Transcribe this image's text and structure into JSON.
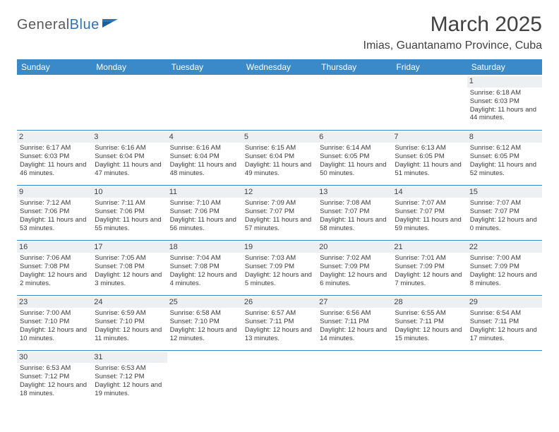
{
  "header": {
    "logo_part1": "General",
    "logo_part2": "Blue",
    "month_title": "March 2025",
    "location": "Imias, Guantanamo Province, Cuba"
  },
  "colors": {
    "header_bar": "#3a89c9",
    "daynum_bg": "#edf0f2",
    "rule": "#3a89c9",
    "logo_accent": "#2d74b5"
  },
  "day_names": [
    "Sunday",
    "Monday",
    "Tuesday",
    "Wednesday",
    "Thursday",
    "Friday",
    "Saturday"
  ],
  "weeks": [
    [
      null,
      null,
      null,
      null,
      null,
      null,
      {
        "n": "1",
        "sr": "Sunrise: 6:18 AM",
        "ss": "Sunset: 6:03 PM",
        "dl": "Daylight: 11 hours and 44 minutes."
      }
    ],
    [
      {
        "n": "2",
        "sr": "Sunrise: 6:17 AM",
        "ss": "Sunset: 6:03 PM",
        "dl": "Daylight: 11 hours and 46 minutes."
      },
      {
        "n": "3",
        "sr": "Sunrise: 6:16 AM",
        "ss": "Sunset: 6:04 PM",
        "dl": "Daylight: 11 hours and 47 minutes."
      },
      {
        "n": "4",
        "sr": "Sunrise: 6:16 AM",
        "ss": "Sunset: 6:04 PM",
        "dl": "Daylight: 11 hours and 48 minutes."
      },
      {
        "n": "5",
        "sr": "Sunrise: 6:15 AM",
        "ss": "Sunset: 6:04 PM",
        "dl": "Daylight: 11 hours and 49 minutes."
      },
      {
        "n": "6",
        "sr": "Sunrise: 6:14 AM",
        "ss": "Sunset: 6:05 PM",
        "dl": "Daylight: 11 hours and 50 minutes."
      },
      {
        "n": "7",
        "sr": "Sunrise: 6:13 AM",
        "ss": "Sunset: 6:05 PM",
        "dl": "Daylight: 11 hours and 51 minutes."
      },
      {
        "n": "8",
        "sr": "Sunrise: 6:12 AM",
        "ss": "Sunset: 6:05 PM",
        "dl": "Daylight: 11 hours and 52 minutes."
      }
    ],
    [
      {
        "n": "9",
        "sr": "Sunrise: 7:12 AM",
        "ss": "Sunset: 7:06 PM",
        "dl": "Daylight: 11 hours and 53 minutes."
      },
      {
        "n": "10",
        "sr": "Sunrise: 7:11 AM",
        "ss": "Sunset: 7:06 PM",
        "dl": "Daylight: 11 hours and 55 minutes."
      },
      {
        "n": "11",
        "sr": "Sunrise: 7:10 AM",
        "ss": "Sunset: 7:06 PM",
        "dl": "Daylight: 11 hours and 56 minutes."
      },
      {
        "n": "12",
        "sr": "Sunrise: 7:09 AM",
        "ss": "Sunset: 7:07 PM",
        "dl": "Daylight: 11 hours and 57 minutes."
      },
      {
        "n": "13",
        "sr": "Sunrise: 7:08 AM",
        "ss": "Sunset: 7:07 PM",
        "dl": "Daylight: 11 hours and 58 minutes."
      },
      {
        "n": "14",
        "sr": "Sunrise: 7:07 AM",
        "ss": "Sunset: 7:07 PM",
        "dl": "Daylight: 11 hours and 59 minutes."
      },
      {
        "n": "15",
        "sr": "Sunrise: 7:07 AM",
        "ss": "Sunset: 7:07 PM",
        "dl": "Daylight: 12 hours and 0 minutes."
      }
    ],
    [
      {
        "n": "16",
        "sr": "Sunrise: 7:06 AM",
        "ss": "Sunset: 7:08 PM",
        "dl": "Daylight: 12 hours and 2 minutes."
      },
      {
        "n": "17",
        "sr": "Sunrise: 7:05 AM",
        "ss": "Sunset: 7:08 PM",
        "dl": "Daylight: 12 hours and 3 minutes."
      },
      {
        "n": "18",
        "sr": "Sunrise: 7:04 AM",
        "ss": "Sunset: 7:08 PM",
        "dl": "Daylight: 12 hours and 4 minutes."
      },
      {
        "n": "19",
        "sr": "Sunrise: 7:03 AM",
        "ss": "Sunset: 7:09 PM",
        "dl": "Daylight: 12 hours and 5 minutes."
      },
      {
        "n": "20",
        "sr": "Sunrise: 7:02 AM",
        "ss": "Sunset: 7:09 PM",
        "dl": "Daylight: 12 hours and 6 minutes."
      },
      {
        "n": "21",
        "sr": "Sunrise: 7:01 AM",
        "ss": "Sunset: 7:09 PM",
        "dl": "Daylight: 12 hours and 7 minutes."
      },
      {
        "n": "22",
        "sr": "Sunrise: 7:00 AM",
        "ss": "Sunset: 7:09 PM",
        "dl": "Daylight: 12 hours and 8 minutes."
      }
    ],
    [
      {
        "n": "23",
        "sr": "Sunrise: 7:00 AM",
        "ss": "Sunset: 7:10 PM",
        "dl": "Daylight: 12 hours and 10 minutes."
      },
      {
        "n": "24",
        "sr": "Sunrise: 6:59 AM",
        "ss": "Sunset: 7:10 PM",
        "dl": "Daylight: 12 hours and 11 minutes."
      },
      {
        "n": "25",
        "sr": "Sunrise: 6:58 AM",
        "ss": "Sunset: 7:10 PM",
        "dl": "Daylight: 12 hours and 12 minutes."
      },
      {
        "n": "26",
        "sr": "Sunrise: 6:57 AM",
        "ss": "Sunset: 7:11 PM",
        "dl": "Daylight: 12 hours and 13 minutes."
      },
      {
        "n": "27",
        "sr": "Sunrise: 6:56 AM",
        "ss": "Sunset: 7:11 PM",
        "dl": "Daylight: 12 hours and 14 minutes."
      },
      {
        "n": "28",
        "sr": "Sunrise: 6:55 AM",
        "ss": "Sunset: 7:11 PM",
        "dl": "Daylight: 12 hours and 15 minutes."
      },
      {
        "n": "29",
        "sr": "Sunrise: 6:54 AM",
        "ss": "Sunset: 7:11 PM",
        "dl": "Daylight: 12 hours and 17 minutes."
      }
    ],
    [
      {
        "n": "30",
        "sr": "Sunrise: 6:53 AM",
        "ss": "Sunset: 7:12 PM",
        "dl": "Daylight: 12 hours and 18 minutes."
      },
      {
        "n": "31",
        "sr": "Sunrise: 6:53 AM",
        "ss": "Sunset: 7:12 PM",
        "dl": "Daylight: 12 hours and 19 minutes."
      },
      null,
      null,
      null,
      null,
      null
    ]
  ]
}
